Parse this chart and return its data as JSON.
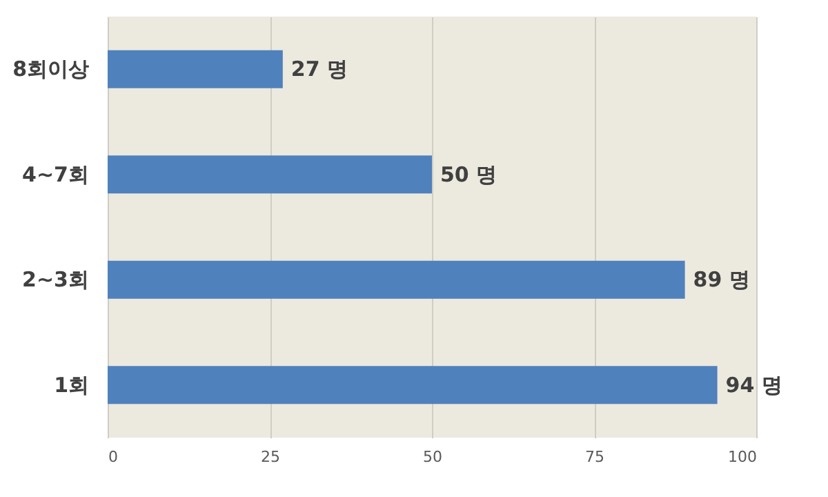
{
  "chart_data": {
    "type": "bar",
    "orientation": "horizontal",
    "categories": [
      "8회이상",
      "4~7회",
      "2~3회",
      "1회"
    ],
    "values": [
      27,
      50,
      89,
      94
    ],
    "color": "#4f81bd",
    "value_labels": [
      "27 명",
      "50 명",
      "89 명",
      "94 명"
    ],
    "xlim": [
      0,
      100
    ],
    "xticks": [
      0,
      25,
      50,
      75,
      100
    ],
    "grid": "x"
  }
}
